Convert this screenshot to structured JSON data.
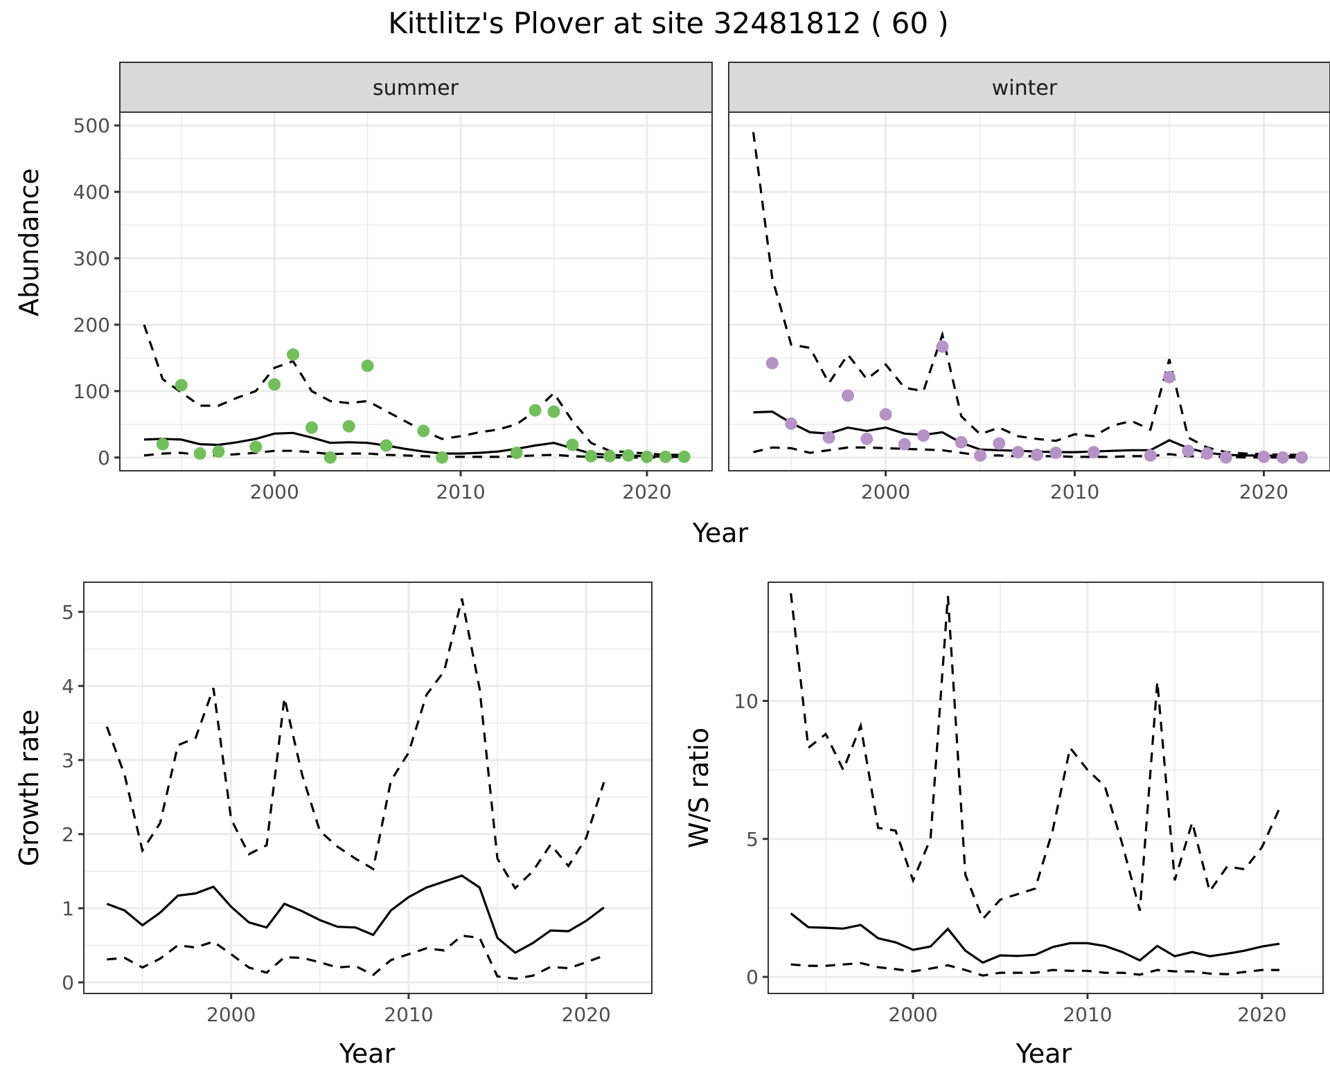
{
  "chart_data": {
    "title": "Kittlitz's Plover at site 32481812 ( 60 )",
    "abundance": {
      "type": "line",
      "ylabel": "Abundance",
      "xlabel": "Year",
      "ylim": [
        -20,
        520
      ],
      "xlim": [
        1991.7,
        2023.5
      ],
      "yticks": [
        0,
        100,
        200,
        300,
        400,
        500
      ],
      "xticks": [
        2000,
        2010,
        2020
      ],
      "panels": [
        {
          "name": "summer",
          "point_color": "#71bf5a",
          "points": {
            "x": [
              1994,
              1995,
              1996,
              1997,
              1999,
              2000,
              2001,
              2002,
              2003,
              2004,
              2005,
              2006,
              2008,
              2009,
              2013,
              2014,
              2015,
              2016,
              2017,
              2018,
              2019,
              2020,
              2021,
              2022
            ],
            "y": [
              20,
              109,
              6,
              9,
              16,
              110,
              155,
              45,
              0,
              47,
              138,
              18,
              40,
              0,
              7,
              71,
              69,
              19,
              2,
              2,
              3,
              1,
              1,
              1
            ]
          },
          "series": [
            {
              "name": "estimate",
              "style": "solid",
              "x": [
                1993,
                1994,
                1995,
                1996,
                1997,
                1998,
                1999,
                2000,
                2001,
                2002,
                2003,
                2004,
                2005,
                2006,
                2007,
                2008,
                2009,
                2010,
                2011,
                2012,
                2013,
                2014,
                2015,
                2016,
                2017,
                2018,
                2019,
                2020,
                2021,
                2022
              ],
              "y": [
                27,
                28,
                27,
                20,
                19,
                23,
                28,
                36,
                37,
                30,
                22,
                23,
                22,
                18,
                13,
                9,
                6,
                6,
                7,
                9,
                13,
                18,
                22,
                14,
                6,
                4,
                3,
                2,
                1,
                1
              ]
            },
            {
              "name": "upper",
              "style": "dashed",
              "x": [
                1993,
                1994,
                1995,
                1996,
                1997,
                1998,
                1999,
                2000,
                2001,
                2002,
                2003,
                2004,
                2005,
                2006,
                2007,
                2008,
                2009,
                2010,
                2011,
                2012,
                2013,
                2014,
                2015,
                2016,
                2017,
                2018,
                2019,
                2020,
                2021,
                2022
              ],
              "y": [
                200,
                118,
                98,
                78,
                78,
                90,
                100,
                135,
                145,
                100,
                85,
                82,
                85,
                70,
                55,
                40,
                28,
                32,
                38,
                42,
                50,
                70,
                97,
                55,
                22,
                10,
                8,
                6,
                4,
                4
              ]
            },
            {
              "name": "lower",
              "style": "dashed",
              "x": [
                1993,
                1994,
                1995,
                1996,
                1997,
                1998,
                1999,
                2000,
                2001,
                2002,
                2003,
                2004,
                2005,
                2006,
                2007,
                2008,
                2009,
                2010,
                2011,
                2012,
                2013,
                2014,
                2015,
                2016,
                2017,
                2018,
                2019,
                2020,
                2021,
                2022
              ],
              "y": [
                3,
                6,
                7,
                4,
                3,
                5,
                7,
                10,
                10,
                8,
                5,
                6,
                6,
                4,
                3,
                2,
                1,
                1,
                1,
                1,
                2,
                3,
                4,
                2,
                1,
                0,
                0,
                0,
                0,
                0
              ]
            }
          ]
        },
        {
          "name": "winter",
          "point_color": "#b593c7",
          "points": {
            "x": [
              1994,
              1995,
              1997,
              1998,
              1999,
              2000,
              2001,
              2002,
              2003,
              2004,
              2005,
              2006,
              2007,
              2008,
              2009,
              2011,
              2014,
              2015,
              2016,
              2017,
              2018,
              2020,
              2021,
              2022
            ],
            "y": [
              142,
              51,
              30,
              93,
              28,
              65,
              20,
              33,
              167,
              23,
              3,
              21,
              8,
              4,
              7,
              8,
              3,
              121,
              10,
              6,
              0,
              1,
              0,
              0
            ]
          },
          "series": [
            {
              "name": "estimate",
              "style": "solid",
              "x": [
                1993,
                1994,
                1995,
                1996,
                1997,
                1998,
                1999,
                2000,
                2001,
                2002,
                2003,
                2004,
                2005,
                2006,
                2007,
                2008,
                2009,
                2010,
                2011,
                2012,
                2013,
                2014,
                2015,
                2016,
                2017,
                2018,
                2019,
                2020,
                2021,
                2022
              ],
              "y": [
                68,
                69,
                52,
                38,
                36,
                45,
                40,
                45,
                36,
                34,
                38,
                22,
                12,
                11,
                10,
                9,
                8,
                8,
                9,
                10,
                11,
                11,
                26,
                14,
                7,
                4,
                3,
                3,
                2,
                2
              ]
            },
            {
              "name": "upper",
              "style": "dashed",
              "x": [
                1993,
                1994,
                1995,
                1996,
                1997,
                1998,
                1999,
                2000,
                2001,
                2002,
                2003,
                2004,
                2005,
                2006,
                2007,
                2008,
                2009,
                2010,
                2011,
                2012,
                2013,
                2014,
                2015,
                2016,
                2017,
                2018,
                2019,
                2020,
                2021,
                2022
              ],
              "y": [
                490,
                270,
                170,
                165,
                112,
                155,
                118,
                140,
                105,
                100,
                185,
                62,
                35,
                45,
                32,
                28,
                25,
                35,
                32,
                48,
                55,
                42,
                148,
                30,
                15,
                8,
                6,
                5,
                4,
                4
              ]
            },
            {
              "name": "lower",
              "style": "dashed",
              "x": [
                1993,
                1994,
                1995,
                1996,
                1997,
                1998,
                1999,
                2000,
                2001,
                2002,
                2003,
                2004,
                2005,
                2006,
                2007,
                2008,
                2009,
                2010,
                2011,
                2012,
                2013,
                2014,
                2015,
                2016,
                2017,
                2018,
                2019,
                2020,
                2021,
                2022
              ],
              "y": [
                8,
                15,
                14,
                7,
                11,
                15,
                15,
                14,
                13,
                12,
                11,
                7,
                3,
                3,
                2,
                2,
                2,
                1,
                1,
                1,
                2,
                2,
                5,
                2,
                1,
                1,
                0,
                0,
                0,
                0
              ]
            }
          ]
        }
      ]
    },
    "growth": {
      "type": "line",
      "ylabel": "Growth rate",
      "xlabel": "Year",
      "ylim": [
        -0.15,
        5.4
      ],
      "xlim": [
        1991.7,
        2023.7
      ],
      "yticks": [
        0,
        1,
        2,
        3,
        4,
        5
      ],
      "xticks": [
        2000,
        2010,
        2020
      ],
      "series": [
        {
          "name": "estimate",
          "style": "solid",
          "x": [
            1993,
            1994,
            1995,
            1996,
            1997,
            1998,
            1999,
            2000,
            2001,
            2002,
            2003,
            2004,
            2005,
            2006,
            2007,
            2008,
            2009,
            2010,
            2011,
            2012,
            2013,
            2014,
            2015,
            2016,
            2017,
            2018,
            2019,
            2020,
            2021
          ],
          "y": [
            1.06,
            0.97,
            0.77,
            0.94,
            1.17,
            1.2,
            1.29,
            1.02,
            0.81,
            0.74,
            1.06,
            0.96,
            0.84,
            0.75,
            0.74,
            0.64,
            0.97,
            1.15,
            1.28,
            1.36,
            1.44,
            1.28,
            0.6,
            0.4,
            0.53,
            0.7,
            0.69,
            0.83,
            1.01
          ]
        },
        {
          "name": "upper",
          "style": "dashed",
          "x": [
            1993,
            1994,
            1995,
            1996,
            1997,
            1998,
            1999,
            2000,
            2001,
            2002,
            2003,
            2004,
            2005,
            2006,
            2007,
            2008,
            2009,
            2010,
            2011,
            2012,
            2013,
            2014,
            2015,
            2016,
            2017,
            2018,
            2019,
            2020,
            2021
          ],
          "y": [
            3.45,
            2.8,
            1.78,
            2.15,
            3.2,
            3.3,
            3.97,
            2.2,
            1.73,
            1.85,
            3.84,
            2.8,
            2.04,
            1.83,
            1.67,
            1.53,
            2.72,
            3.1,
            3.88,
            4.2,
            5.18,
            3.96,
            1.67,
            1.27,
            1.5,
            1.86,
            1.57,
            1.95,
            2.7
          ]
        },
        {
          "name": "lower",
          "style": "dashed",
          "x": [
            1993,
            1994,
            1995,
            1996,
            1997,
            1998,
            1999,
            2000,
            2001,
            2002,
            2003,
            2004,
            2005,
            2006,
            2007,
            2008,
            2009,
            2010,
            2011,
            2012,
            2013,
            2014,
            2015,
            2016,
            2017,
            2018,
            2019,
            2020,
            2021
          ],
          "y": [
            0.31,
            0.33,
            0.2,
            0.32,
            0.5,
            0.47,
            0.55,
            0.38,
            0.2,
            0.13,
            0.34,
            0.33,
            0.27,
            0.2,
            0.22,
            0.1,
            0.3,
            0.38,
            0.46,
            0.43,
            0.63,
            0.6,
            0.08,
            0.05,
            0.09,
            0.21,
            0.19,
            0.27,
            0.36
          ]
        }
      ]
    },
    "ratio": {
      "type": "line",
      "ylabel": "W/S ratio",
      "xlabel": "Year",
      "ylim": [
        -0.6,
        14.3
      ],
      "xlim": [
        1991.7,
        2023.5
      ],
      "yticks": [
        0,
        5,
        10
      ],
      "xticks": [
        2000,
        2010,
        2020
      ],
      "series": [
        {
          "name": "estimate",
          "style": "solid",
          "x": [
            1993,
            1994,
            1995,
            1996,
            1997,
            1998,
            1999,
            2000,
            2001,
            2002,
            2003,
            2004,
            2005,
            2006,
            2007,
            2008,
            2009,
            2010,
            2011,
            2012,
            2013,
            2014,
            2015,
            2016,
            2017,
            2018,
            2019,
            2020,
            2021
          ],
          "y": [
            2.3,
            1.8,
            1.78,
            1.75,
            1.88,
            1.4,
            1.25,
            0.98,
            1.1,
            1.74,
            0.95,
            0.52,
            0.78,
            0.76,
            0.8,
            1.08,
            1.22,
            1.22,
            1.12,
            0.9,
            0.6,
            1.12,
            0.75,
            0.9,
            0.75,
            0.84,
            0.95,
            1.1,
            1.2
          ]
        },
        {
          "name": "upper",
          "style": "dashed",
          "x": [
            1993,
            1994,
            1995,
            1996,
            1997,
            1998,
            1999,
            2000,
            2001,
            2002,
            2003,
            2004,
            2005,
            2006,
            2007,
            2008,
            2009,
            2010,
            2011,
            2012,
            2013,
            2014,
            2015,
            2016,
            2017,
            2018,
            2019,
            2020,
            2021
          ],
          "y": [
            13.9,
            8.3,
            8.8,
            7.5,
            9.1,
            5.4,
            5.3,
            3.5,
            5.0,
            13.8,
            3.7,
            2.1,
            2.8,
            3.0,
            3.2,
            5.3,
            8.3,
            7.5,
            6.9,
            4.8,
            2.4,
            10.7,
            3.5,
            5.6,
            3.1,
            4.0,
            3.9,
            4.7,
            6.1
          ]
        },
        {
          "name": "lower",
          "style": "dashed",
          "x": [
            1993,
            1994,
            1995,
            1996,
            1997,
            1998,
            1999,
            2000,
            2001,
            2002,
            2003,
            2004,
            2005,
            2006,
            2007,
            2008,
            2009,
            2010,
            2011,
            2012,
            2013,
            2014,
            2015,
            2016,
            2017,
            2018,
            2019,
            2020,
            2021
          ],
          "y": [
            0.45,
            0.4,
            0.4,
            0.45,
            0.5,
            0.35,
            0.28,
            0.2,
            0.3,
            0.42,
            0.25,
            0.05,
            0.15,
            0.15,
            0.15,
            0.25,
            0.22,
            0.22,
            0.15,
            0.15,
            0.08,
            0.25,
            0.2,
            0.2,
            0.12,
            0.1,
            0.18,
            0.25,
            0.25
          ]
        }
      ]
    }
  }
}
